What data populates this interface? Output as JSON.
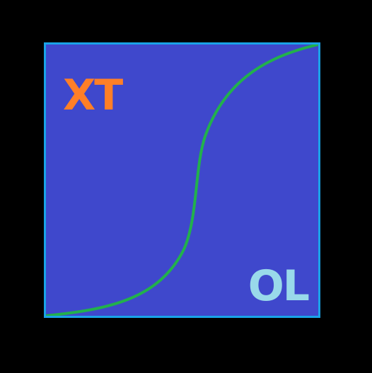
{
  "top_left_label": {
    "text": "XT",
    "color": "#ff7f27"
  },
  "bottom_right_label": {
    "text": "OL",
    "color": "#99d9ea"
  },
  "box": {
    "fill": "#3f48cc",
    "border": "#1aa3e8"
  },
  "curve": {
    "stroke": "#22b14c",
    "shape": "s-curve"
  }
}
